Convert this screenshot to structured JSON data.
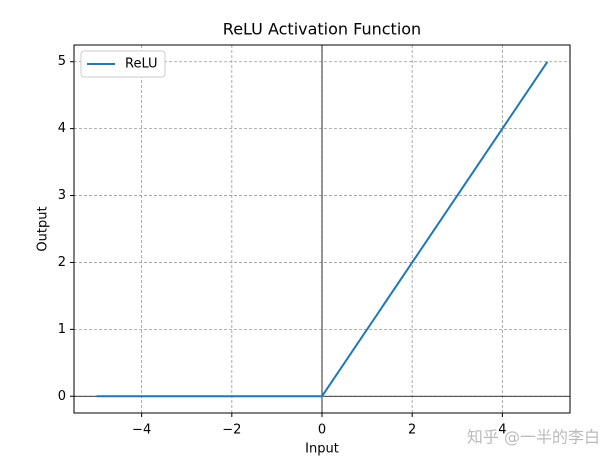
{
  "chart_data": {
    "type": "line",
    "title": "ReLU Activation Function",
    "x_label": "Input",
    "y_label": "Output",
    "x": [
      -5,
      0,
      5
    ],
    "series": [
      {
        "name": "ReLU",
        "color": "#1f77b4",
        "values": [
          0,
          0,
          5
        ]
      }
    ],
    "xlim": [
      -5.5,
      5.5
    ],
    "ylim": [
      -0.25,
      5.25
    ],
    "xticks": [
      {
        "value": -4,
        "label": "−4"
      },
      {
        "value": -2,
        "label": "−2"
      },
      0,
      2,
      4
    ],
    "yticks": [
      0,
      1,
      2,
      3,
      4,
      5
    ],
    "grid": true,
    "zero_lines": true,
    "legend": "upper left",
    "watermark": "知乎 @一半的李白"
  }
}
